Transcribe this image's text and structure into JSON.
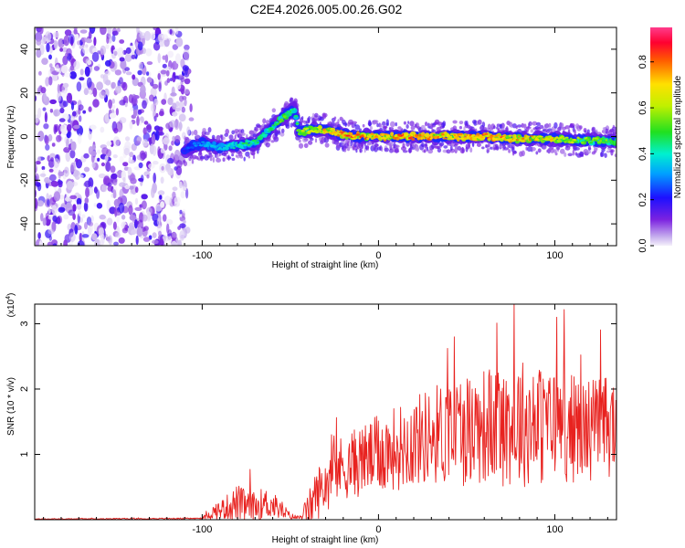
{
  "title": "C2E4.2026.005.00.26.G02",
  "chart_data": [
    {
      "type": "heatmap",
      "title": "",
      "xlabel": "Height of straight line (km)",
      "ylabel": "Frequency (Hz)",
      "xlim": [
        -195,
        135
      ],
      "ylim": [
        -50,
        50
      ],
      "x_ticks": [
        -100,
        0,
        100
      ],
      "y_ticks": [
        -40,
        -20,
        0,
        20,
        40
      ],
      "colorbar": {
        "label": "Normalized spectral amplitude",
        "range": [
          0,
          0.95
        ],
        "ticks": [
          0.0,
          0.2,
          0.4,
          0.6,
          0.8
        ],
        "tick_labels": [
          "0.0",
          "0.2",
          "0.4",
          "0.6",
          "0.8"
        ]
      },
      "noise_region": [
        -195,
        -108
      ],
      "ridge": {
        "x": [
          -110,
          -100,
          -90,
          -80,
          -70,
          -62,
          -55,
          -48,
          -45,
          -40,
          -30,
          -20,
          -10,
          0,
          20,
          40,
          60,
          80,
          100,
          120,
          135
        ],
        "freq": [
          -6,
          -3,
          -5,
          -4,
          -3,
          3,
          8,
          13,
          2,
          3,
          3,
          1,
          0,
          0,
          0,
          0,
          0,
          -1,
          -1,
          -2,
          -2
        ],
        "amplitude": [
          0.25,
          0.35,
          0.4,
          0.45,
          0.5,
          0.5,
          0.55,
          0.5,
          0.6,
          0.65,
          0.75,
          0.85,
          0.85,
          0.8,
          0.85,
          0.75,
          0.85,
          0.8,
          0.7,
          0.6,
          0.55
        ]
      }
    },
    {
      "type": "line",
      "title": "",
      "xlabel": "Height of straight line (km)",
      "ylabel": "SNR (10 * v/v)",
      "y_exponent": "(x10",
      "y_exponent_power": "4",
      "y_exponent_close": ")",
      "xlim": [
        -195,
        135
      ],
      "ylim": [
        0,
        3.3
      ],
      "x_ticks": [
        -100,
        0,
        100
      ],
      "y_ticks": [
        1,
        2,
        3
      ],
      "color": "#e8221f",
      "envelope": {
        "x": [
          -195,
          -100,
          -95,
          -85,
          -80,
          -75,
          -70,
          -65,
          -60,
          -55,
          -50,
          -45,
          -40,
          -35,
          -30,
          -25,
          -20,
          -10,
          0,
          10,
          20,
          30,
          40,
          50,
          60,
          70,
          80,
          90,
          100,
          110,
          120,
          135
        ],
        "mean": [
          0.01,
          0.02,
          0.1,
          0.2,
          0.25,
          0.2,
          0.2,
          0.25,
          0.22,
          0.15,
          0.05,
          0.03,
          0.15,
          0.4,
          0.55,
          0.75,
          0.8,
          0.9,
          1.0,
          1.1,
          1.2,
          1.3,
          1.35,
          1.4,
          1.45,
          1.45,
          1.5,
          1.45,
          1.45,
          1.4,
          1.4,
          1.45
        ],
        "spread": [
          0.005,
          0.01,
          0.1,
          0.2,
          0.3,
          0.25,
          0.22,
          0.25,
          0.2,
          0.15,
          0.05,
          0.03,
          0.25,
          0.4,
          0.45,
          0.5,
          0.5,
          0.55,
          0.6,
          0.65,
          0.7,
          0.75,
          0.85,
          0.9,
          0.9,
          0.95,
          1.0,
          0.95,
          0.9,
          0.85,
          0.8,
          0.8
        ]
      },
      "peaks": [
        {
          "x": -73,
          "y": 0.77
        },
        {
          "x": 43,
          "y": 2.8
        },
        {
          "x": 77,
          "y": 3.3
        },
        {
          "x": 101,
          "y": 3.1
        }
      ]
    }
  ]
}
